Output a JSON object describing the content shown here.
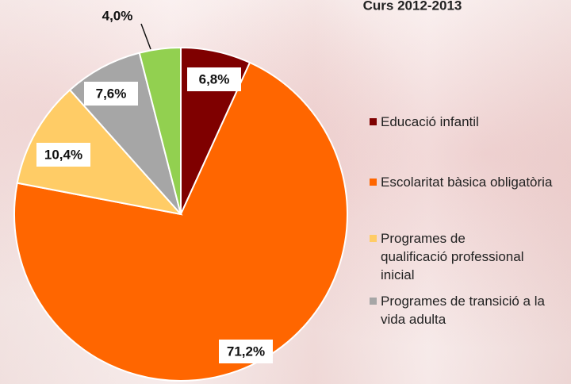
{
  "chart_data": {
    "type": "pie",
    "title": "Curs 2012-2013",
    "categories": [
      "Educació infantil",
      "Escolaritat bàsica obligatòria",
      "Programes de qualificació professional inicial",
      "Programes de transició a la vida adulta",
      null
    ],
    "values": [
      6.8,
      71.2,
      10.4,
      7.6,
      4.0
    ],
    "value_labels": [
      "6,8%",
      "71,2%",
      "10,4%",
      "7,6%",
      "4,0%"
    ],
    "colors": [
      "#7f0000",
      "#ff6600",
      "#ffcc66",
      "#a6a6a6",
      "#92d050"
    ],
    "legend": "right"
  }
}
